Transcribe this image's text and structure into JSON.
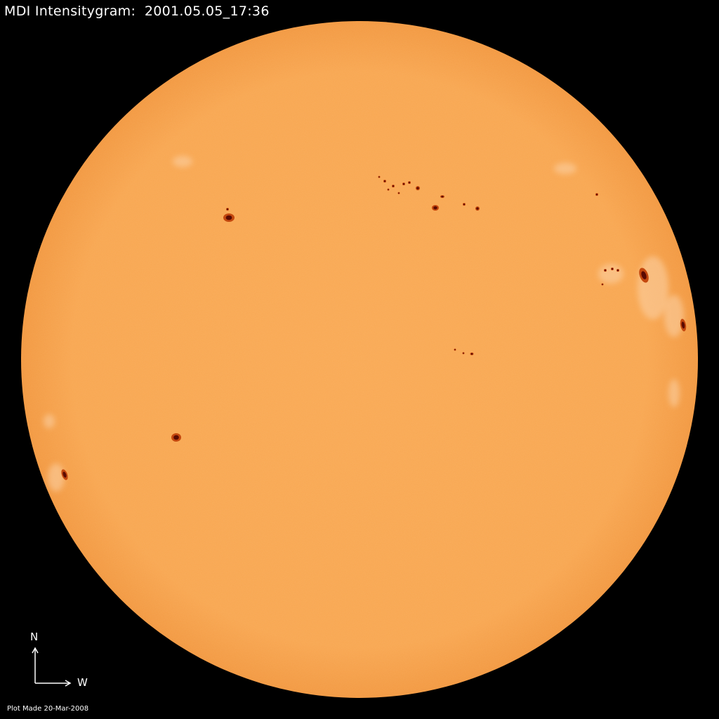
{
  "title": "MDI Intensitygram:  2001.05.05_17:36",
  "footer": "Plot Made 20-Mar-2008",
  "compass": {
    "north": "N",
    "west": "W"
  },
  "colors": {
    "background": "#000000",
    "disk": "#f8a650",
    "limb": "#f39a43",
    "sunspot_umbra": "#5a0a02",
    "sunspot_penumbra": "#c4480e",
    "faculae": "#fcd3a8"
  }
}
